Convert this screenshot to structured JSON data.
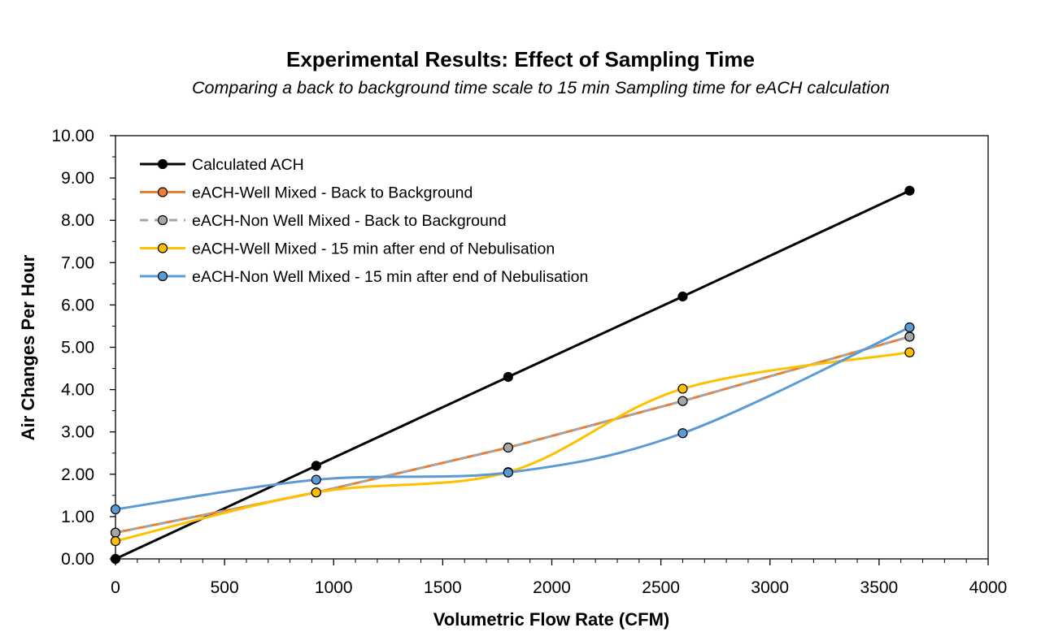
{
  "chart_data": {
    "type": "line",
    "title": "Experimental Results: Effect of Sampling Time",
    "subtitle": "Comparing a back to background time scale to 15 min Sampling time for eACH calculation",
    "xlabel": "Volumetric Flow Rate (CFM)",
    "ylabel": "Air Changes Per Hour",
    "xlim": [
      0,
      4000
    ],
    "ylim": [
      0,
      10
    ],
    "x_ticks": [
      "0",
      "500",
      "1000",
      "1500",
      "2000",
      "2500",
      "3000",
      "3500",
      "4000"
    ],
    "y_ticks": [
      "0.00",
      "1.00",
      "2.00",
      "3.00",
      "4.00",
      "5.00",
      "6.00",
      "7.00",
      "8.00",
      "9.00",
      "10.00"
    ],
    "x": [
      0,
      920,
      1800,
      2600,
      3640
    ],
    "grid": false,
    "legend_position": "top-left",
    "series": [
      {
        "name": "Calculated ACH",
        "values": [
          0,
          2.2,
          4.3,
          6.2,
          8.7
        ],
        "color": "#000000",
        "smooth": false,
        "dashed": false,
        "marker_fill": "#000000"
      },
      {
        "name": "eACH-Well Mixed - Back to Background",
        "values": [
          0.62,
          1.57,
          2.63,
          3.73,
          5.25
        ],
        "color": "#ED7D31",
        "smooth": false,
        "dashed": false,
        "marker_fill": "#ED7D31"
      },
      {
        "name": "eACH-Non Well Mixed - Back to Background",
        "values": [
          0.62,
          1.57,
          2.63,
          3.73,
          5.25
        ],
        "color": "#A5A5A5",
        "smooth": false,
        "dashed": true,
        "marker_fill": "#A5A5A5"
      },
      {
        "name": "eACH-Well Mixed - 15 min after end of Nebulisation",
        "values": [
          0.42,
          1.57,
          2.05,
          4.02,
          4.88
        ],
        "color": "#FFC000",
        "smooth": true,
        "dashed": false,
        "marker_fill": "#FFC000"
      },
      {
        "name": "eACH-Non Well Mixed - 15 min after end of Nebulisation",
        "values": [
          1.17,
          1.87,
          2.04,
          2.97,
          5.47
        ],
        "color": "#5B9BD5",
        "smooth": true,
        "dashed": false,
        "marker_fill": "#5B9BD5"
      }
    ]
  }
}
